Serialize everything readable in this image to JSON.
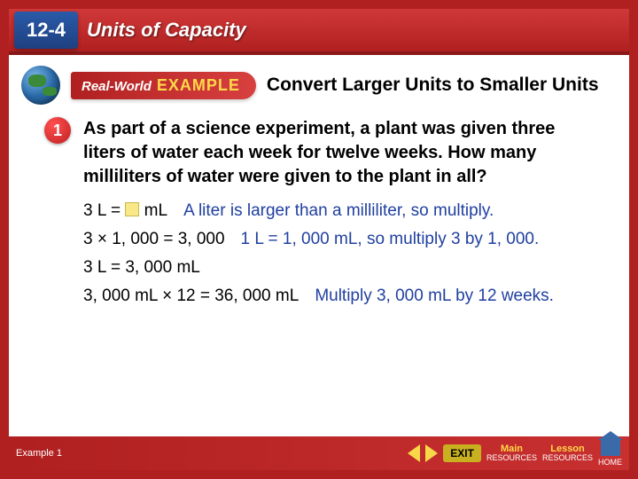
{
  "header": {
    "lesson_number": "12-4",
    "title": "Units of Capacity"
  },
  "example_tag": {
    "prefix": "Real-World",
    "word": "EXAMPLE"
  },
  "section_title": "Convert Larger Units to Smaller Units",
  "problem": {
    "number": "1",
    "text": "As part of a science experiment, a plant was given three liters of water each week for twelve weeks. How many milliliters of water were given to the plant in all?"
  },
  "steps": [
    {
      "math_pre": "3 L = ",
      "math_post": " mL",
      "has_blank": true,
      "explain": "A liter is larger than a milliliter, so multiply."
    },
    {
      "math_pre": "3 × 1, 000 = 3, 000",
      "math_post": "",
      "has_blank": false,
      "explain": "1 L = 1, 000 mL, so multiply 3 by 1, 000."
    },
    {
      "math_pre": "3 L = 3, 000 mL",
      "math_post": "",
      "has_blank": false,
      "explain": ""
    },
    {
      "math_pre": "3, 000 mL × 12 = 36, 000 mL",
      "math_post": "",
      "has_blank": false,
      "explain": "Multiply 3, 000 mL by 12 weeks."
    }
  ],
  "bottom": {
    "label": "Example 1",
    "exit": "EXIT",
    "main": "Main",
    "resources_top": "Lesson",
    "resources_bottom": "RESOURCES",
    "home": "HOME"
  },
  "colors": {
    "frame": "#b02020",
    "header_grad_top": "#d03838",
    "accent_blue": "#2040a0",
    "badge_yellow": "#ffd848"
  }
}
